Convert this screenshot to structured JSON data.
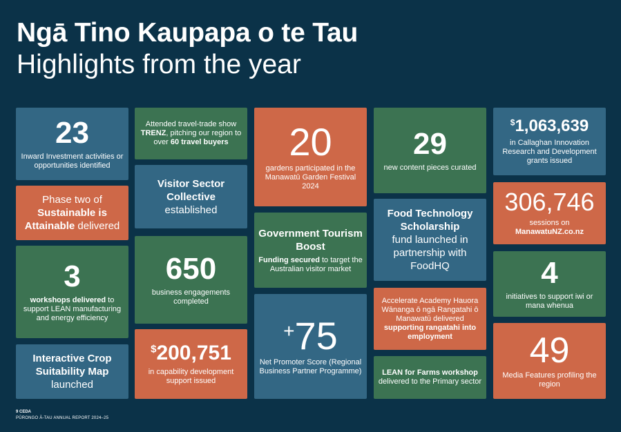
{
  "header": {
    "title_maori": "Ngā Tino Kaupapa o te Tau",
    "title_english": "Highlights from the year"
  },
  "tiles": {
    "inward": {
      "number": "23",
      "text": "Inward Investment activities or opportunities identified"
    },
    "phase_two": {
      "pre": "Phase two of",
      "bold": "Sustainable is Attainable",
      "post": "delivered"
    },
    "workshops": {
      "number": "3",
      "bold": "workshops delivered",
      "text": "to support LEAN manufacturing and energy efficiency"
    },
    "crop_map": {
      "bold": "Interactive Crop Suitability Map",
      "text": "launched"
    },
    "trenz": {
      "pre": "Attended travel-trade show",
      "bold1": "TRENZ",
      "mid": ", pitching our region to over",
      "bold2": "60 travel buyers"
    },
    "visitor_collective": {
      "bold": "Visitor Sector Collective",
      "text": "established"
    },
    "engagements": {
      "number": "650",
      "text": "business engagements completed"
    },
    "capability": {
      "currency": "$",
      "number": "200,751",
      "text": "in capability development support issued"
    },
    "gardens": {
      "number": "20",
      "text": "gardens participated in the Manawatū Garden Festival 2024"
    },
    "tourism_boost": {
      "bold": "Government Tourism Boost",
      "bold2": "Funding secured",
      "text": "to target the Australian visitor market"
    },
    "nps": {
      "prefix": "+",
      "number": "75",
      "text": "Net Promoter Score (Regional Business Partner Programme)"
    },
    "content": {
      "number": "29",
      "text": "new content pieces curated"
    },
    "food_tech": {
      "bold": "Food Technology Scholarship",
      "text": "fund launched in partnership with FoodHQ"
    },
    "accelerate": {
      "text": "Accelerate Academy Hauora Wānanga ō ngā Rangatahi ō Manawatū delivered",
      "bold": "supporting rangatahi into employment"
    },
    "lean_farms": {
      "bold": "LEAN for Farms workshop",
      "text": "delivered to the Primary sector"
    },
    "callaghan": {
      "currency": "$",
      "number": "1,063,639",
      "text": "in Callaghan Innovation Research and Development grants issued"
    },
    "sessions": {
      "number": "306,746",
      "text": "sessions on",
      "bold": "ManawatuNZ.co.nz"
    },
    "iwi": {
      "number": "4",
      "text": "initiatives to support iwi or mana whenua"
    },
    "media": {
      "number": "49",
      "text": "Media Features profiling the region"
    }
  },
  "footer": {
    "page": "9 CEDA",
    "report": "PŪRONGO Ā-TAU ANNUAL REPORT 2024–25"
  },
  "colors": {
    "background": "#0b3248",
    "blue": "#336784",
    "green": "#3c7352",
    "orange": "#ce6848"
  }
}
